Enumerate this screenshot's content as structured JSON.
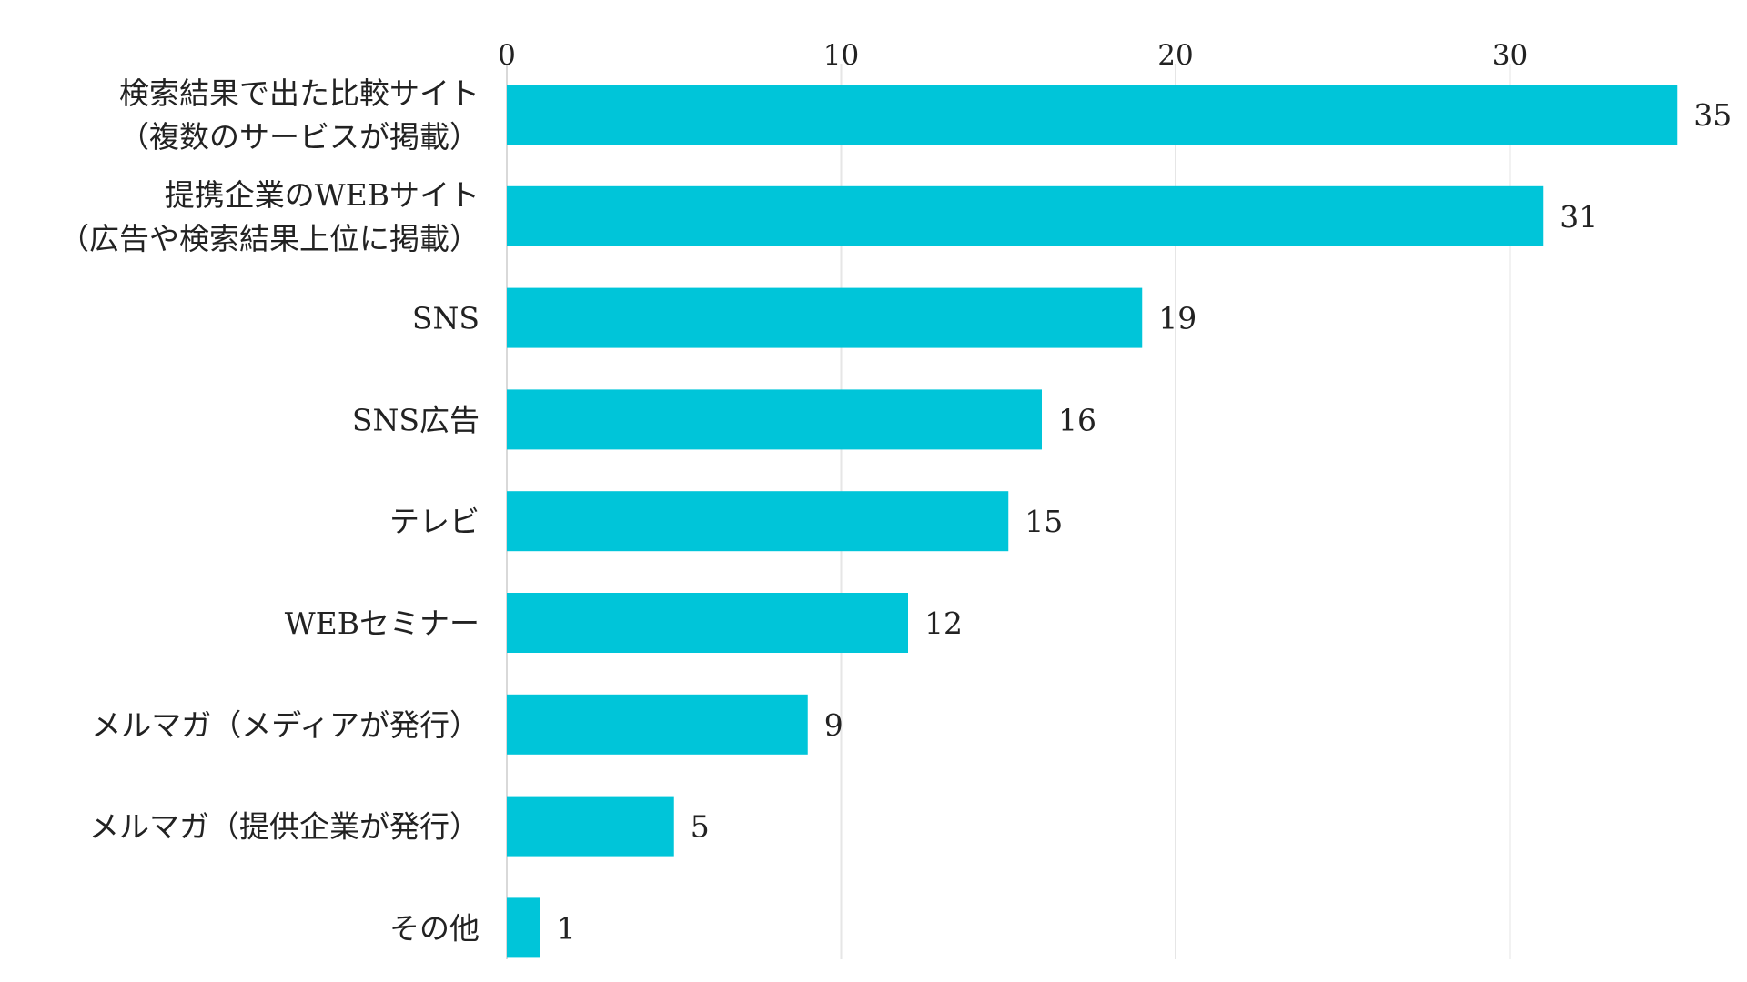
{
  "chart_data": {
    "type": "bar",
    "orientation": "horizontal",
    "categories": [
      [
        "検索結果で出た比較サイト",
        "（複数のサービスが掲載）"
      ],
      [
        "提携企業のWEBサイト",
        "（広告や検索結果上位に掲載）"
      ],
      [
        "SNS"
      ],
      [
        "SNS広告"
      ],
      [
        "テレビ"
      ],
      [
        "WEBセミナー"
      ],
      [
        "メルマガ（メディアが発行）"
      ],
      [
        "メルマガ（提供企業が発行）"
      ],
      [
        "その他"
      ]
    ],
    "values": [
      35,
      31,
      19,
      16,
      15,
      12,
      9,
      5,
      1
    ],
    "xlim": [
      0,
      35
    ],
    "x_ticks": [
      0,
      10,
      20,
      30
    ],
    "x_axis_position": "top",
    "grid": true,
    "data_labels": true,
    "bar_color": "#00c5d9",
    "title": "",
    "xlabel": "",
    "ylabel": ""
  }
}
